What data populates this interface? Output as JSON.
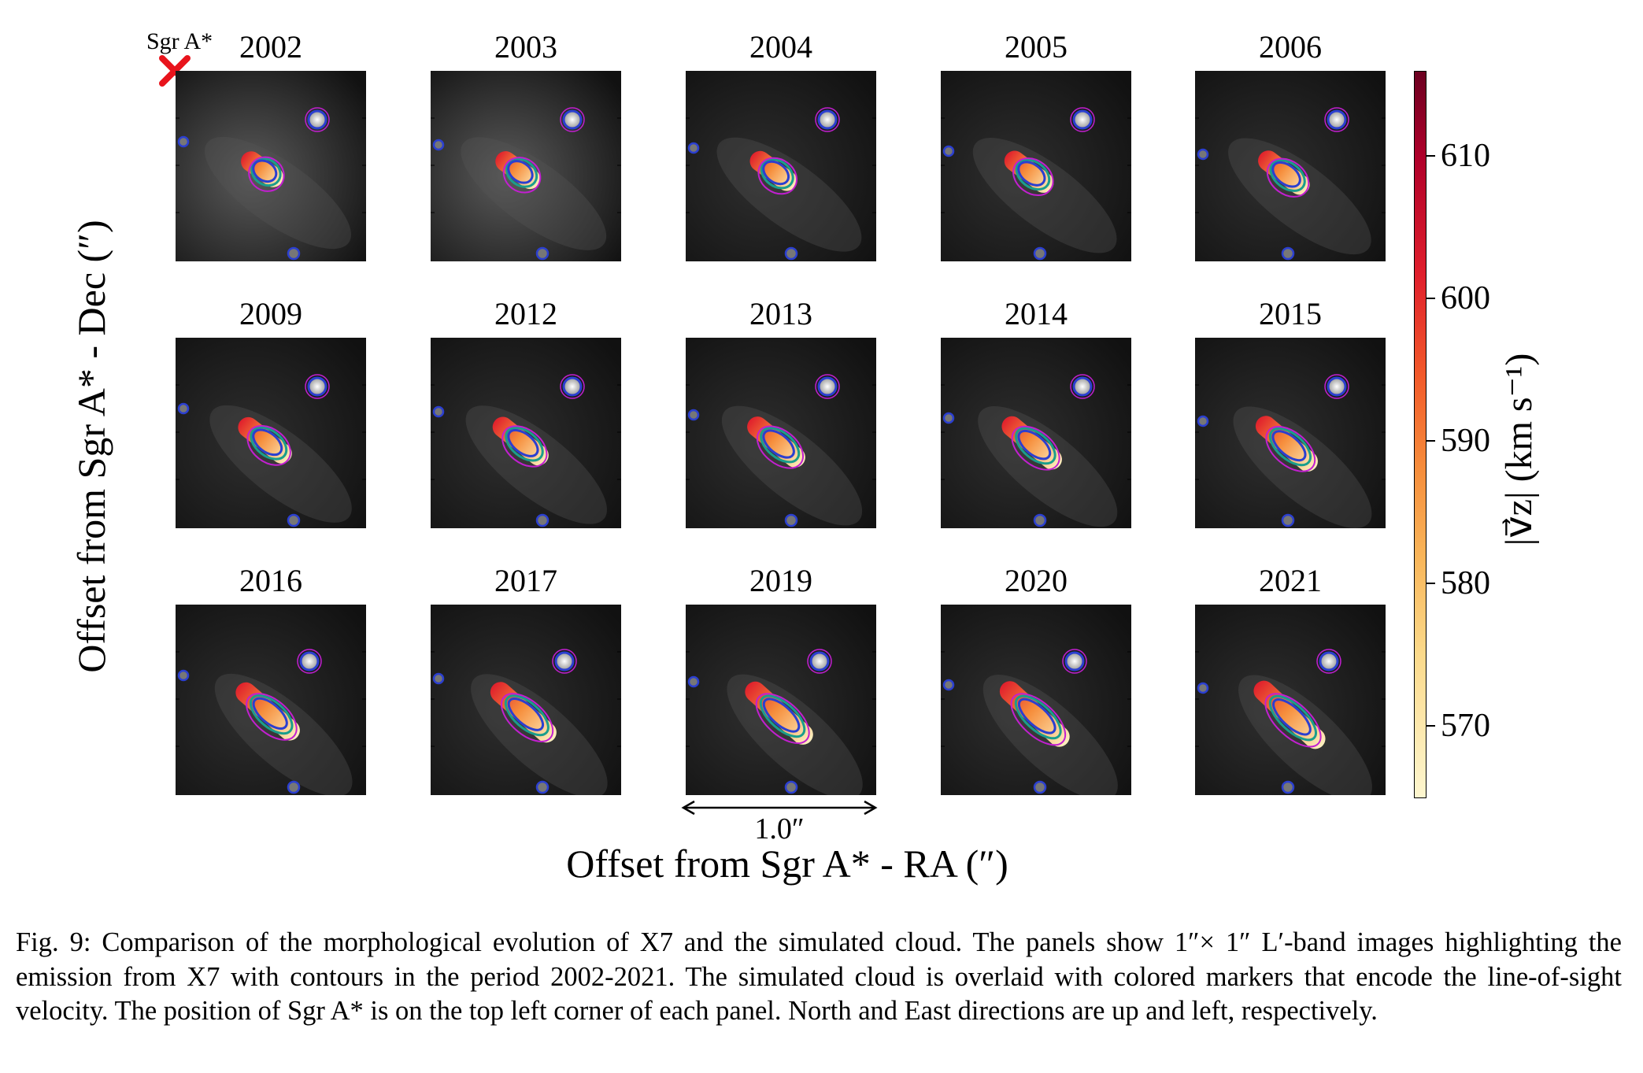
{
  "figure": {
    "sgr_label": "Sgr A*",
    "panels": [
      {
        "year": "2002"
      },
      {
        "year": "2003"
      },
      {
        "year": "2004"
      },
      {
        "year": "2005"
      },
      {
        "year": "2006"
      },
      {
        "year": "2009"
      },
      {
        "year": "2012"
      },
      {
        "year": "2013"
      },
      {
        "year": "2014"
      },
      {
        "year": "2015"
      },
      {
        "year": "2016"
      },
      {
        "year": "2017"
      },
      {
        "year": "2019"
      },
      {
        "year": "2020"
      },
      {
        "year": "2021"
      }
    ],
    "y_axis_label": "Offset from Sgr A* - Dec (″)",
    "x_axis_label": "Offset from Sgr A* - RA (″)",
    "scale_label": "1.0″",
    "colorbar": {
      "label": "|v⃗z| (km s⁻¹)",
      "ticks": [
        "610",
        "600",
        "590",
        "580",
        "570"
      ],
      "range": [
        565,
        616
      ],
      "colors": [
        "#6b0020",
        "#e01f2c",
        "#f68e3c",
        "#fbd98a",
        "#fdf6cf"
      ]
    }
  },
  "caption": "Fig. 9: Comparison of the morphological evolution of X7 and the simulated cloud. The panels show 1″× 1″ L′-band images highlighting the emission from X7 with contours in the period 2002-2021. The simulated cloud is overlaid with colored markers that encode the line-of-sight velocity. The position of Sgr A* is on the top left corner of each panel. North and East directions are up and left, respectively."
}
